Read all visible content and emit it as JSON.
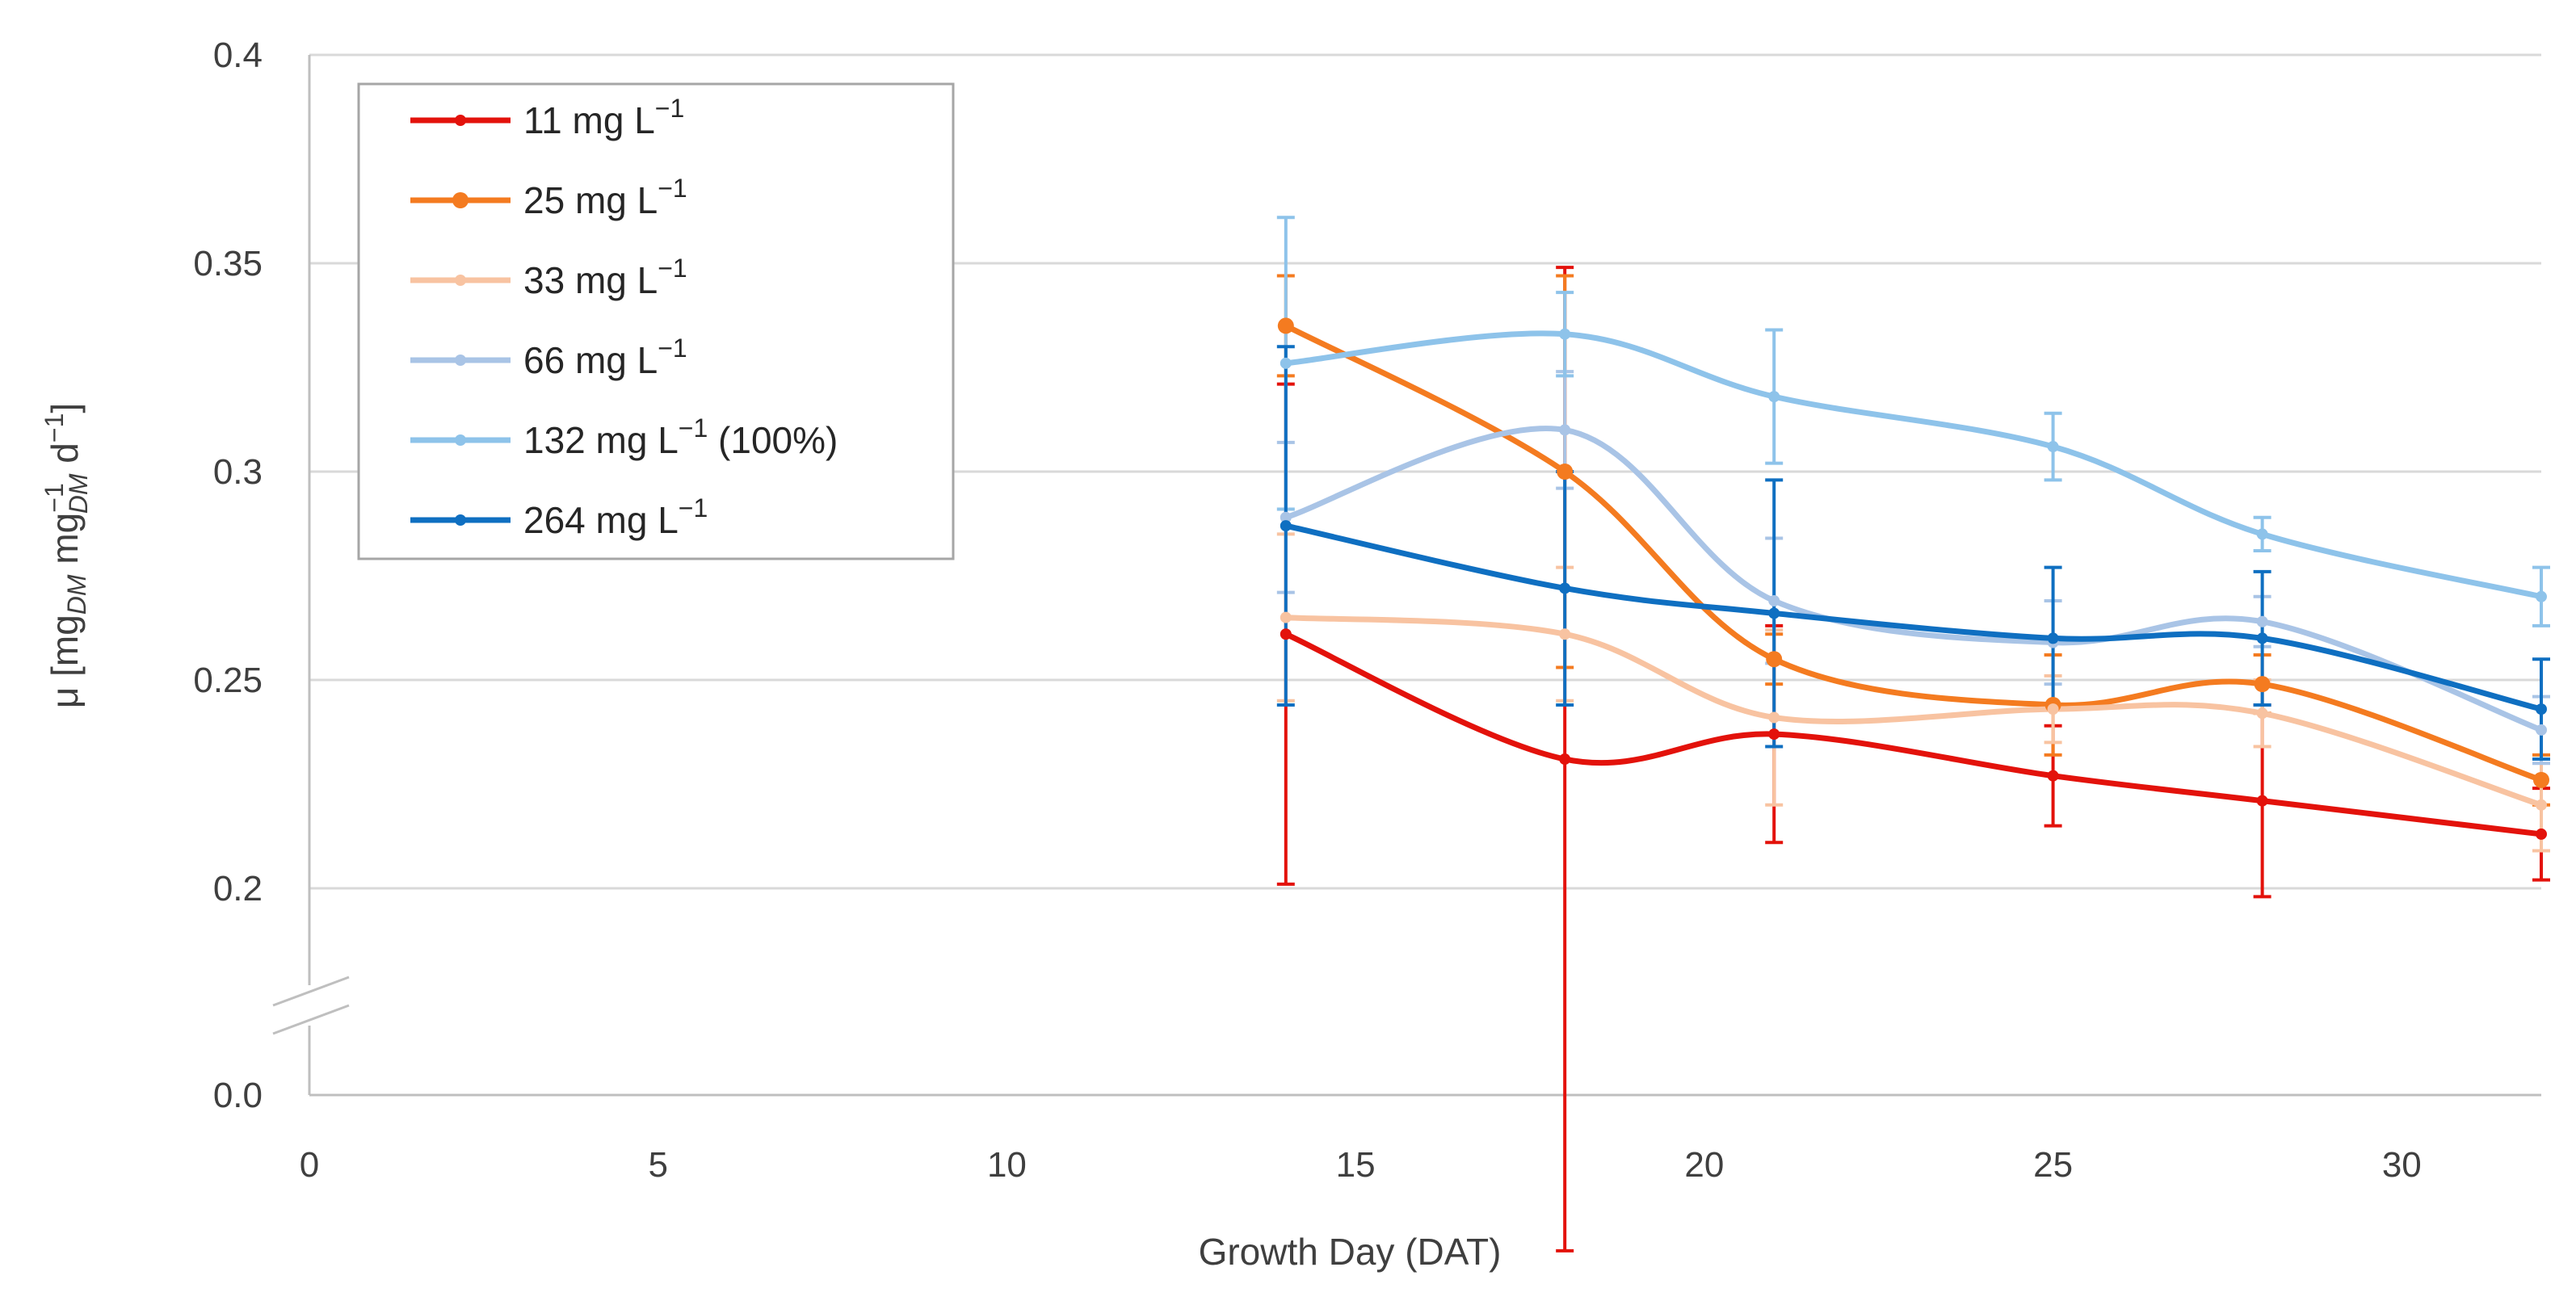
{
  "chart_data": {
    "type": "line",
    "xlabel": "Growth Day (DAT)",
    "ylabel": {
      "parts": [
        "μ [mg",
        "DM",
        " mg",
        "−1",
        "DM",
        " d",
        "−1",
        "]"
      ]
    },
    "xlim": [
      0,
      32
    ],
    "xticks": [
      "0",
      "5",
      "10",
      "15",
      "20",
      "25",
      "30"
    ],
    "ylim_upper": [
      0.2,
      0.4
    ],
    "yticks_upper": [
      "0.2",
      "0.25",
      "0.3",
      "0.35",
      "0.4"
    ],
    "ytick_break_label": "0.0",
    "y_axis_break": true,
    "grid": "horizontal",
    "legend_position": "top-left",
    "x": [
      14,
      18,
      21,
      25,
      28,
      32
    ],
    "series": [
      {
        "name": "11 mg L",
        "sup": "−1",
        "suffix": "",
        "color": "#e3120b",
        "values": [
          0.261,
          0.231,
          0.237,
          0.227,
          0.221,
          0.213
        ],
        "errors": [
          0.06,
          0.118,
          0.026,
          0.012,
          0.023,
          0.011
        ],
        "marker_size": "small"
      },
      {
        "name": "25 mg L",
        "sup": "−1",
        "suffix": "",
        "color": "#f47b20",
        "values": [
          0.335,
          0.3,
          0.255,
          0.244,
          0.249,
          0.226
        ],
        "errors": [
          0.012,
          0.047,
          0.006,
          0.012,
          0.007,
          0.006
        ],
        "marker_size": "large"
      },
      {
        "name": "33 mg L",
        "sup": "−1",
        "suffix": "",
        "color": "#f8c3a1",
        "values": [
          0.265,
          0.261,
          0.241,
          0.243,
          0.242,
          0.22
        ],
        "errors": [
          0.02,
          0.016,
          0.021,
          0.008,
          0.008,
          0.011
        ],
        "marker_size": "small"
      },
      {
        "name": "66 mg L",
        "sup": "−1",
        "suffix": "",
        "color": "#a9c4e6",
        "values": [
          0.289,
          0.31,
          0.269,
          0.259,
          0.264,
          0.238
        ],
        "errors": [
          0.018,
          0.014,
          0.015,
          0.01,
          0.006,
          0.008
        ],
        "marker_size": "small"
      },
      {
        "name": "132 mg L",
        "sup": "−1",
        "suffix": " (100%)",
        "color": "#8ec3ea",
        "values": [
          0.326,
          0.333,
          0.318,
          0.306,
          0.285,
          0.27
        ],
        "errors": [
          0.035,
          0.01,
          0.016,
          0.008,
          0.004,
          0.007
        ],
        "marker_size": "small"
      },
      {
        "name": "264 mg L",
        "sup": "−1",
        "suffix": "",
        "color": "#0f6fc1",
        "values": [
          0.287,
          0.272,
          0.266,
          0.26,
          0.26,
          0.243
        ],
        "errors": [
          0.043,
          0.028,
          0.032,
          0.017,
          0.016,
          0.012
        ],
        "marker_size": "small"
      }
    ]
  }
}
